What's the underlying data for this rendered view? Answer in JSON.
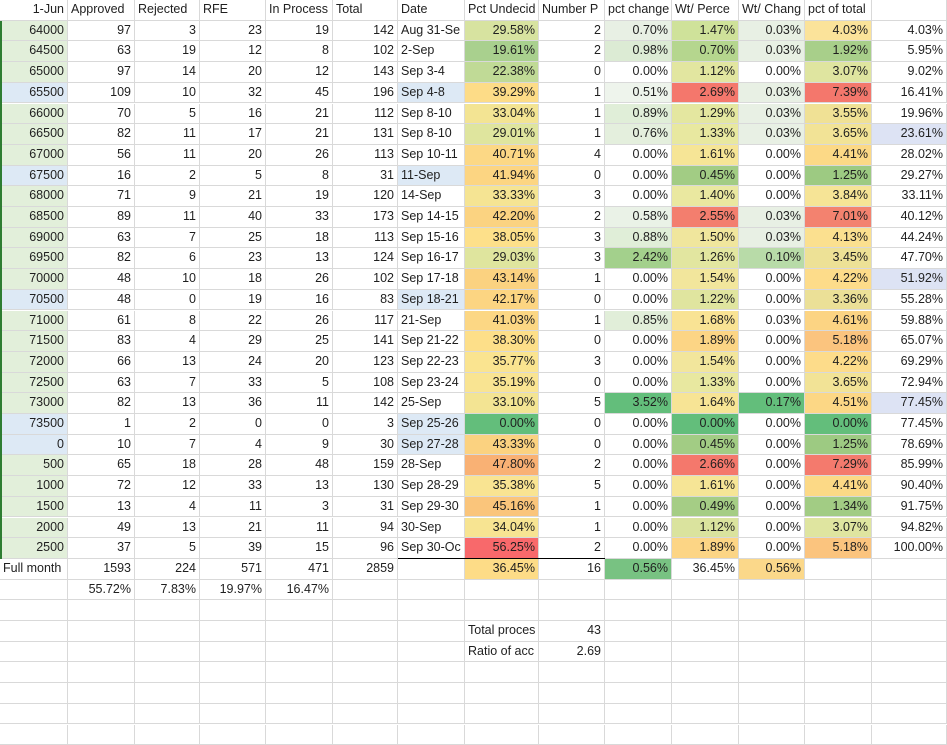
{
  "headers": [
    "1-Jun",
    "Approved",
    "Rejected",
    "RFE",
    "In Process",
    "Total",
    "Date",
    "Pct Undecid",
    "Number P",
    "pct change",
    "Wt/ Perce",
    "Wt/ Chang",
    "pct of total",
    ""
  ],
  "rows": [
    {
      "c": [
        "64000",
        "97",
        "3",
        "23",
        "19",
        "142",
        "Aug 31-Se",
        "29.58%",
        "2",
        "0.70%",
        "1.47%",
        "0.03%",
        "4.03%",
        "4.03%"
      ],
      "bg": [
        "#e2efda",
        "",
        "",
        "",
        "",
        "",
        "",
        "#d7e3a0",
        "",
        "#e8f0e4",
        "#cfe29a",
        "#e8f0e4",
        "#fbe39a",
        ""
      ]
    },
    {
      "c": [
        "64500",
        "63",
        "19",
        "12",
        "8",
        "102",
        "2-Sep",
        "19.61%",
        "2",
        "0.98%",
        "0.70%",
        "0.03%",
        "1.92%",
        "5.95%"
      ],
      "bg": [
        "#e2efda",
        "",
        "",
        "",
        "",
        "",
        "",
        "#a9d08e",
        "",
        "#dcebd4",
        "#b5d68e",
        "#e8f0e4",
        "#a8cf8a",
        ""
      ]
    },
    {
      "c": [
        "65000",
        "97",
        "14",
        "20",
        "12",
        "143",
        "Sep 3-4",
        "22.38%",
        "0",
        "0.00%",
        "1.12%",
        "0.00%",
        "3.07%",
        "9.02%"
      ],
      "bg": [
        "#e2efda",
        "",
        "",
        "",
        "",
        "",
        "",
        "#c0da96",
        "",
        "",
        "#e2e6a0",
        "",
        "#dfe5a0",
        ""
      ]
    },
    {
      "c": [
        "65500",
        "109",
        "10",
        "32",
        "45",
        "196",
        "Sep 4-8",
        "39.29%",
        "1",
        "0.51%",
        "2.69%",
        "0.03%",
        "7.39%",
        "16.41%"
      ],
      "bg": [
        "#dde9f5",
        "",
        "",
        "",
        "",
        "",
        "#dde9f5",
        "#fddc87",
        "",
        "#eef4ec",
        "#f4776c",
        "#e8f0e4",
        "#f4776c",
        ""
      ]
    },
    {
      "c": [
        "66000",
        "70",
        "5",
        "16",
        "21",
        "112",
        "Sep 8-10",
        "33.04%",
        "1",
        "0.89%",
        "1.29%",
        "0.03%",
        "3.55%",
        "19.96%"
      ],
      "bg": [
        "#e2efda",
        "",
        "",
        "",
        "",
        "",
        "",
        "#f3e493",
        "",
        "#e0eed8",
        "#e4e7a0",
        "#e8f0e4",
        "#f0e195",
        ""
      ]
    },
    {
      "c": [
        "66500",
        "82",
        "11",
        "17",
        "21",
        "131",
        "Sep 8-10",
        "29.01%",
        "1",
        "0.76%",
        "1.33%",
        "0.03%",
        "3.65%",
        "23.61%"
      ],
      "bg": [
        "#e2efda",
        "",
        "",
        "",
        "",
        "",
        "",
        "#dfe59e",
        "",
        "#e4efdd",
        "#e8e8a0",
        "#e8f0e4",
        "#f2e396",
        "#dde3f4"
      ]
    },
    {
      "c": [
        "67000",
        "56",
        "11",
        "20",
        "26",
        "113",
        "Sep 10-11",
        "40.71%",
        "4",
        "0.00%",
        "1.61%",
        "0.00%",
        "4.41%",
        "28.02%"
      ],
      "bg": [
        "#e2efda",
        "",
        "",
        "",
        "",
        "",
        "",
        "#fcd885",
        "",
        "",
        "#f6e596",
        "",
        "#fcd986",
        ""
      ]
    },
    {
      "c": [
        "67500",
        "16",
        "2",
        "5",
        "8",
        "31",
        "11-Sep",
        "41.94%",
        "0",
        "0.00%",
        "0.45%",
        "0.00%",
        "1.25%",
        "29.27%"
      ],
      "bg": [
        "#dde9f5",
        "",
        "",
        "",
        "",
        "",
        "#dde9f5",
        "#fcd582",
        "",
        "",
        "#a2cc84",
        "",
        "#9dca82",
        ""
      ]
    },
    {
      "c": [
        "68000",
        "71",
        "9",
        "21",
        "19",
        "120",
        "14-Sep",
        "33.33%",
        "3",
        "0.00%",
        "1.40%",
        "0.00%",
        "3.84%",
        "33.11%"
      ],
      "bg": [
        "#e2efda",
        "",
        "",
        "",
        "",
        "",
        "",
        "#f5e493",
        "",
        "",
        "#eae8a0",
        "",
        "#f6e496",
        ""
      ]
    },
    {
      "c": [
        "68500",
        "89",
        "11",
        "40",
        "33",
        "173",
        "Sep 14-15",
        "42.20%",
        "2",
        "0.58%",
        "2.55%",
        "0.03%",
        "7.01%",
        "40.12%"
      ],
      "bg": [
        "#e2efda",
        "",
        "",
        "",
        "",
        "",
        "",
        "#fbd381",
        "",
        "#eaf2e7",
        "#f37e6e",
        "#e8f0e4",
        "#f3826f",
        ""
      ]
    },
    {
      "c": [
        "69000",
        "63",
        "7",
        "25",
        "18",
        "113",
        "Sep 15-16",
        "38.05%",
        "3",
        "0.88%",
        "1.50%",
        "0.03%",
        "4.13%",
        "44.24%"
      ],
      "bg": [
        "#e2efda",
        "",
        "",
        "",
        "",
        "",
        "",
        "#fde08a",
        "",
        "#e0eed8",
        "#f0e69d",
        "#e8f0e4",
        "#fbe08f",
        ""
      ]
    },
    {
      "c": [
        "69500",
        "82",
        "6",
        "23",
        "13",
        "124",
        "Sep 16-17",
        "29.03%",
        "3",
        "2.42%",
        "1.26%",
        "0.10%",
        "3.45%",
        "47.70%"
      ],
      "bg": [
        "#e2efda",
        "",
        "",
        "",
        "",
        "",
        "",
        "#dfe59e",
        "",
        "#a3d08c",
        "#e2e6a0",
        "#b8dba8",
        "#ede196",
        ""
      ]
    },
    {
      "c": [
        "70000",
        "48",
        "10",
        "18",
        "26",
        "102",
        "Sep 17-18",
        "43.14%",
        "1",
        "0.00%",
        "1.54%",
        "0.00%",
        "4.22%",
        "51.92%"
      ],
      "bg": [
        "#e2efda",
        "",
        "",
        "",
        "",
        "",
        "",
        "#fbd280",
        "",
        "",
        "#f2e69c",
        "",
        "#fddc8a",
        "#dde3f4"
      ]
    },
    {
      "c": [
        "70500",
        "48",
        "0",
        "19",
        "16",
        "83",
        "Sep 18-21",
        "42.17%",
        "0",
        "0.00%",
        "1.22%",
        "0.00%",
        "3.36%",
        "55.28%"
      ],
      "bg": [
        "#dde9f5",
        "",
        "",
        "",
        "",
        "",
        "#dde9f5",
        "#fcd582",
        "",
        "",
        "#e0e59f",
        "",
        "#ebe097",
        ""
      ]
    },
    {
      "c": [
        "71000",
        "61",
        "8",
        "22",
        "26",
        "117",
        "21-Sep",
        "41.03%",
        "1",
        "0.85%",
        "1.68%",
        "0.03%",
        "4.61%",
        "59.88%"
      ],
      "bg": [
        "#e2efda",
        "",
        "",
        "",
        "",
        "",
        "",
        "#fcd784",
        "",
        "#e1eed9",
        "#f9e394",
        "",
        "#fcd483",
        ""
      ]
    },
    {
      "c": [
        "71500",
        "83",
        "4",
        "29",
        "25",
        "141",
        "Sep 21-22",
        "38.30%",
        "0",
        "0.00%",
        "1.89%",
        "0.00%",
        "5.18%",
        "65.07%"
      ],
      "bg": [
        "#e2efda",
        "",
        "",
        "",
        "",
        "",
        "",
        "#fddf89",
        "",
        "",
        "#fcd585",
        "",
        "#fbc47e",
        ""
      ]
    },
    {
      "c": [
        "72000",
        "66",
        "13",
        "24",
        "20",
        "123",
        "Sep 22-23",
        "35.77%",
        "3",
        "0.00%",
        "1.54%",
        "0.00%",
        "4.22%",
        "69.29%"
      ],
      "bg": [
        "#e2efda",
        "",
        "",
        "",
        "",
        "",
        "",
        "#fae490",
        "",
        "",
        "#f2e69c",
        "",
        "#fddc8a",
        ""
      ]
    },
    {
      "c": [
        "72500",
        "63",
        "7",
        "33",
        "5",
        "108",
        "Sep 23-24",
        "35.19%",
        "0",
        "0.00%",
        "1.33%",
        "0.00%",
        "3.65%",
        "72.94%"
      ],
      "bg": [
        "#e2efda",
        "",
        "",
        "",
        "",
        "",
        "",
        "#f9e492",
        "",
        "",
        "#e8e8a0",
        "",
        "#f2e396",
        ""
      ]
    },
    {
      "c": [
        "73000",
        "82",
        "13",
        "36",
        "11",
        "142",
        "25-Sep",
        "33.10%",
        "5",
        "3.52%",
        "1.64%",
        "0.17%",
        "4.51%",
        "77.45%"
      ],
      "bg": [
        "#e2efda",
        "",
        "",
        "",
        "",
        "",
        "",
        "#f3e493",
        "",
        "#63be7b",
        "#f7e495",
        "#63be7b",
        "#fcd785",
        "#dde3f4"
      ]
    },
    {
      "c": [
        "73500",
        "1",
        "2",
        "0",
        "0",
        "3",
        "Sep 25-26",
        "0.00%",
        "0",
        "0.00%",
        "0.00%",
        "0.00%",
        "0.00%",
        "77.45%"
      ],
      "bg": [
        "#dde9f5",
        "",
        "",
        "",
        "",
        "",
        "#dde9f5",
        "#63be7b",
        "",
        "",
        "#63be7b",
        "",
        "#63be7b",
        ""
      ]
    },
    {
      "c": [
        "0",
        "10",
        "7",
        "4",
        "9",
        "30",
        "Sep 27-28",
        "43.33%",
        "0",
        "0.00%",
        "0.45%",
        "0.00%",
        "1.25%",
        "78.69%"
      ],
      "bg": [
        "#dde9f5",
        "",
        "",
        "",
        "",
        "",
        "#dde9f5",
        "#fbd280",
        "",
        "",
        "#a2cc84",
        "",
        "#9dca82",
        ""
      ]
    },
    {
      "c": [
        "500",
        "65",
        "18",
        "28",
        "48",
        "159",
        "28-Sep",
        "47.80%",
        "2",
        "0.00%",
        "2.66%",
        "0.00%",
        "7.29%",
        "85.99%"
      ],
      "bg": [
        "#e2efda",
        "",
        "",
        "",
        "",
        "",
        "",
        "#f9b174",
        "",
        "",
        "#f4786c",
        "",
        "#f47a6d",
        ""
      ]
    },
    {
      "c": [
        "1000",
        "72",
        "12",
        "33",
        "13",
        "130",
        "Sep 28-29",
        "35.38%",
        "5",
        "0.00%",
        "1.61%",
        "0.00%",
        "4.41%",
        "90.40%"
      ],
      "bg": [
        "#e2efda",
        "",
        "",
        "",
        "",
        "",
        "",
        "#f9e492",
        "",
        "",
        "#f6e596",
        "",
        "#fcd986",
        ""
      ]
    },
    {
      "c": [
        "1500",
        "13",
        "4",
        "11",
        "3",
        "31",
        "Sep 29-30",
        "45.16%",
        "1",
        "0.00%",
        "0.49%",
        "0.00%",
        "1.34%",
        "91.75%"
      ],
      "bg": [
        "#e2efda",
        "",
        "",
        "",
        "",
        "",
        "",
        "#fac57b",
        "",
        "",
        "#a5cd85",
        "",
        "#a2cc84",
        ""
      ]
    },
    {
      "c": [
        "2000",
        "49",
        "13",
        "21",
        "11",
        "94",
        "30-Sep",
        "34.04%",
        "1",
        "0.00%",
        "1.12%",
        "0.00%",
        "3.07%",
        "94.82%"
      ],
      "bg": [
        "#e2efda",
        "",
        "",
        "",
        "",
        "",
        "",
        "#f7e492",
        "",
        "",
        "#dae39e",
        "",
        "#dfe5a0",
        ""
      ]
    },
    {
      "c": [
        "2500",
        "37",
        "5",
        "39",
        "15",
        "96",
        "Sep 30-Oc",
        "56.25%",
        "2",
        "0.00%",
        "1.89%",
        "0.00%",
        "5.18%",
        "100.00%"
      ],
      "bg": [
        "#e2efda",
        "",
        "",
        "",
        "",
        "",
        "",
        "#f8696b",
        "",
        "",
        "#fcd585",
        "",
        "#fbc47e",
        ""
      ]
    },
    {
      "c": [
        "Full month",
        "1593",
        "224",
        "571",
        "471",
        "2859",
        "",
        "36.45%",
        "16",
        "0.56%",
        "36.45%",
        "0.56%",
        "",
        ""
      ],
      "bg": [
        "",
        "",
        "",
        "",
        "",
        "",
        "",
        "#fddc87",
        "",
        "#78c282",
        "",
        "#fbd88a",
        "",
        ""
      ]
    },
    {
      "c": [
        "",
        "55.72%",
        "7.83%",
        "19.97%",
        "16.47%",
        "",
        "",
        "",
        "",
        "",
        "",
        "",
        "",
        ""
      ],
      "bg": [
        "",
        "",
        "",
        "",
        "",
        "",
        "",
        "",
        "",
        "",
        "",
        "",
        "",
        ""
      ]
    },
    {
      "c": [
        "",
        "",
        "",
        "",
        "",
        "",
        "",
        "",
        "",
        "",
        "",
        "",
        "",
        ""
      ],
      "bg": []
    },
    {
      "c": [
        "",
        "",
        "",
        "",
        "",
        "",
        "",
        "Total proces",
        "43",
        "",
        "",
        "",
        "",
        ""
      ],
      "bg": []
    },
    {
      "c": [
        "",
        "",
        "",
        "",
        "",
        "",
        "",
        "Ratio of acc",
        "2.69",
        "",
        "",
        "",
        "",
        ""
      ],
      "bg": []
    },
    {
      "c": [
        "",
        "",
        "",
        "",
        "",
        "",
        "",
        "",
        "",
        "",
        "",
        "",
        "",
        ""
      ],
      "bg": []
    },
    {
      "c": [
        "",
        "",
        "",
        "",
        "",
        "",
        "",
        "",
        "",
        "",
        "",
        "",
        "",
        ""
      ],
      "bg": []
    },
    {
      "c": [
        "",
        "",
        "",
        "",
        "",
        "",
        "",
        "",
        "",
        "",
        "",
        "",
        "",
        ""
      ],
      "bg": []
    },
    {
      "c": [
        "",
        "",
        "",
        "",
        "",
        "",
        "",
        "",
        "",
        "",
        "",
        "",
        "",
        ""
      ],
      "bg": []
    }
  ]
}
